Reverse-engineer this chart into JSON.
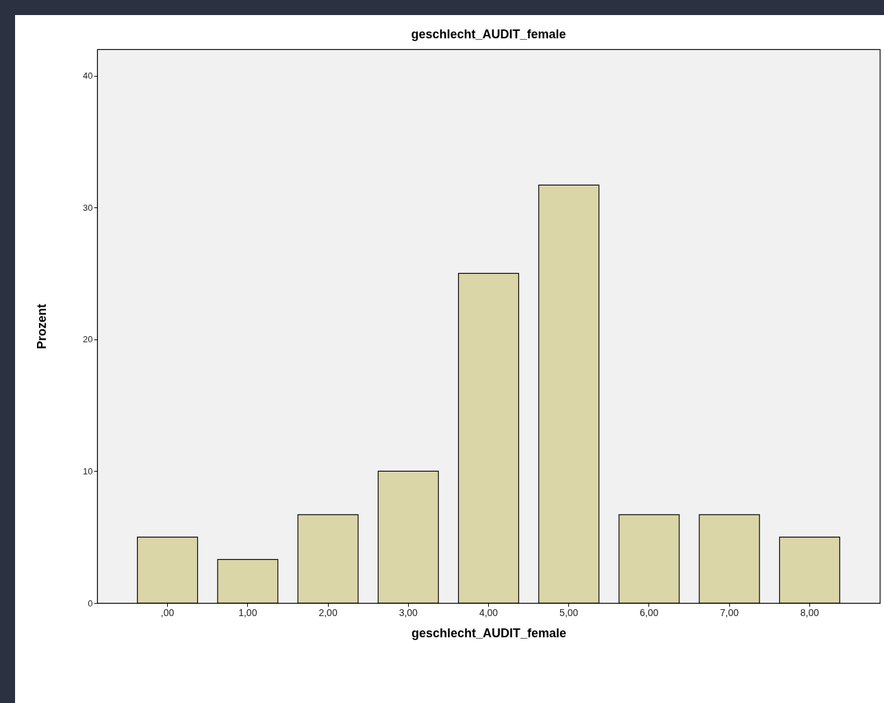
{
  "chart_data": {
    "type": "bar",
    "title": "geschlecht_AUDIT_female",
    "xlabel": "geschlecht_AUDIT_female",
    "ylabel": "Prozent",
    "categories": [
      ",00",
      "1,00",
      "2,00",
      "3,00",
      "4,00",
      "5,00",
      "6,00",
      "7,00",
      "8,00"
    ],
    "values": [
      5,
      3.3,
      6.7,
      10,
      25,
      31.7,
      6.7,
      6.7,
      5
    ],
    "color": "#dbd6a8",
    "ylim": [
      0,
      42
    ],
    "yticks": [
      0,
      10,
      20,
      30,
      40
    ],
    "grid": false
  }
}
